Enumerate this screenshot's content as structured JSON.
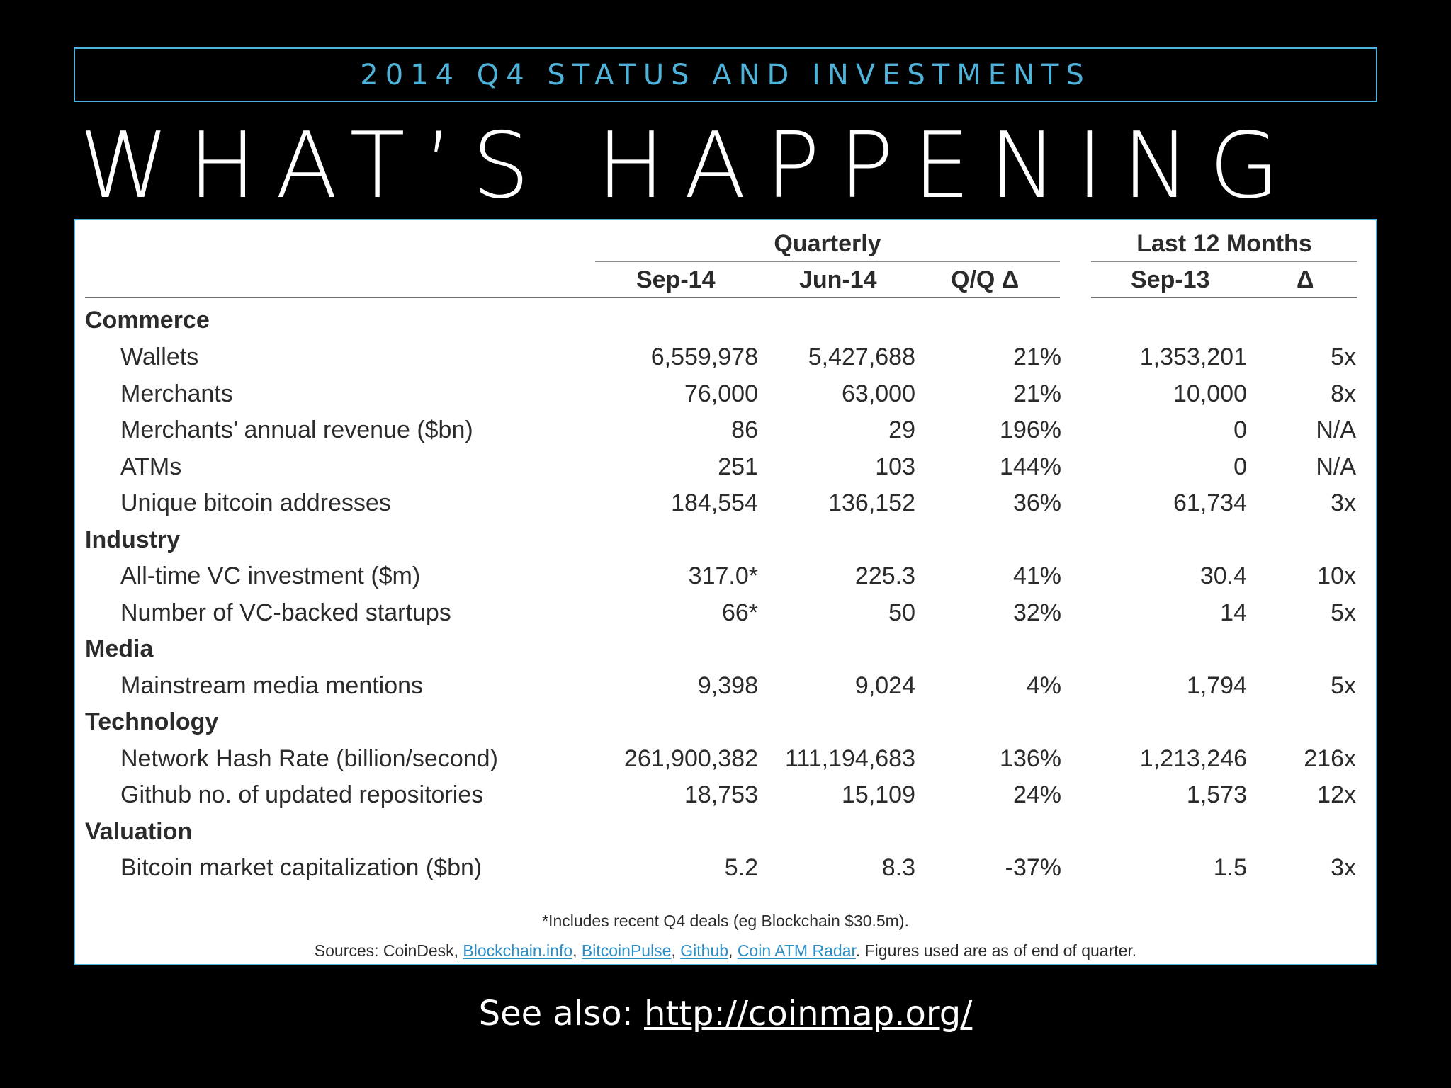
{
  "subtitle": "2014 Q4 STATUS AND INVESTMENTS",
  "title": "WHAT’S HAPPENING",
  "table": {
    "group_headers": {
      "quarterly": "Quarterly",
      "last12": "Last 12 Months"
    },
    "columns": [
      "Sep-14",
      "Jun-14",
      "Q/Q Δ",
      "Sep-13",
      "Δ"
    ],
    "sections": {
      "commerce": "Commerce",
      "industry": "Industry",
      "media": "Media",
      "technology": "Technology",
      "valuation": "Valuation"
    },
    "rows": [
      {
        "label": "Wallets",
        "values": [
          "6,559,978",
          "5,427,688",
          "21%",
          "1,353,201",
          "5x"
        ]
      },
      {
        "label": "Merchants",
        "values": [
          "76,000",
          "63,000",
          "21%",
          "10,000",
          "8x"
        ]
      },
      {
        "label": "Merchants’ annual revenue ($bn)",
        "values": [
          "86",
          "29",
          "196%",
          "0",
          "N/A"
        ]
      },
      {
        "label": "ATMs",
        "values": [
          "251",
          "103",
          "144%",
          "0",
          "N/A"
        ]
      },
      {
        "label": "Unique bitcoin addresses",
        "values": [
          "184,554",
          "136,152",
          "36%",
          "61,734",
          "3x"
        ]
      },
      {
        "label": "All-time VC investment ($m)",
        "values": [
          "317.0*",
          "225.3",
          "41%",
          "30.4",
          "10x"
        ]
      },
      {
        "label": "Number of VC-backed startups",
        "values": [
          "66*",
          "50",
          "32%",
          "14",
          "5x"
        ]
      },
      {
        "label": "Mainstream media mentions",
        "values": [
          "9,398",
          "9,024",
          "4%",
          "1,794",
          "5x"
        ]
      },
      {
        "label": "Network Hash Rate (billion/second)",
        "values": [
          "261,900,382",
          "111,194,683",
          "136%",
          "1,213,246",
          "216x"
        ]
      },
      {
        "label": "Github no. of updated repositories",
        "values": [
          "18,753",
          "15,109",
          "24%",
          "1,573",
          "12x"
        ]
      },
      {
        "label": "Bitcoin market capitalization ($bn)",
        "values": [
          "5.2",
          "8.3",
          "-37%",
          "1.5",
          "3x"
        ]
      }
    ],
    "footnote": "*Includes recent Q4 deals (eg Blockchain $30.5m).",
    "sources": {
      "prefix": "Sources: CoinDesk, ",
      "links": [
        "Blockchain.info",
        "BitcoinPulse",
        "Github",
        "Coin ATM Radar"
      ],
      "sep": ", ",
      "suffix": ". Figures used are as of end of quarter."
    }
  },
  "see_also": {
    "prefix": "See also: ",
    "url": "http://coinmap.org/"
  },
  "colors": {
    "accent": "#4fb3d9",
    "link": "#2a8fc7",
    "background": "#000000"
  }
}
